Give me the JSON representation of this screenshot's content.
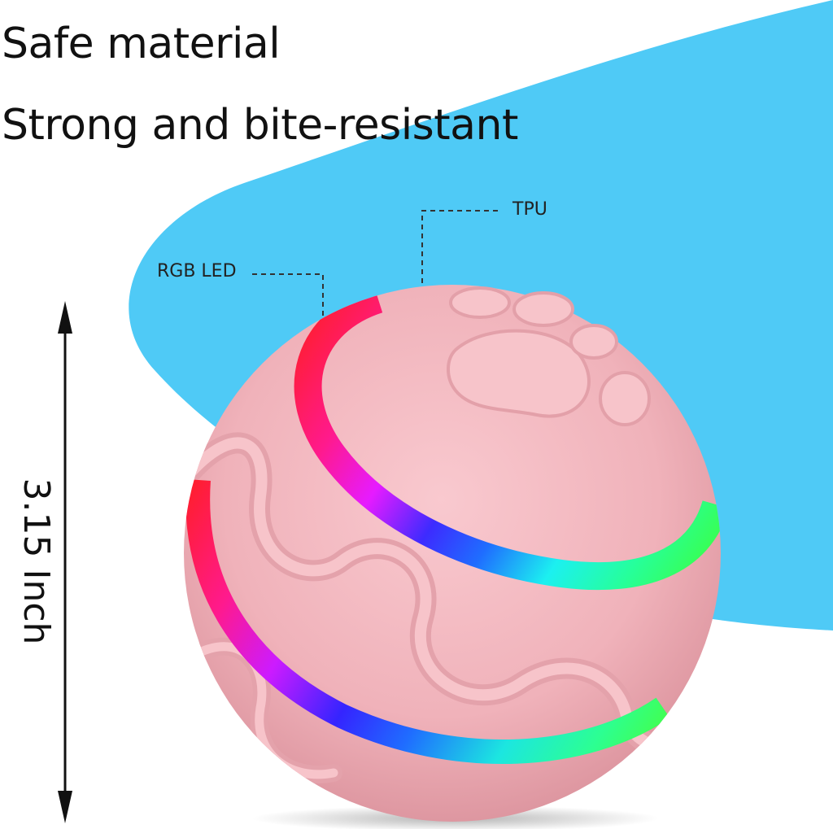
{
  "headline": {
    "line1": "Safe material",
    "line2": "Strong and bite-resistant"
  },
  "callouts": {
    "tpu": "TPU",
    "led": "RGB LED"
  },
  "dimension": {
    "label": "3.15 Inch"
  },
  "colors": {
    "background": "#ffffff",
    "blue_shape": "#4fcaf6",
    "ball_pink": "#f0b3bb",
    "text": "#111111"
  },
  "icons": {
    "arrow": "double-headed-vertical-arrow-icon",
    "paw": "paw-print-icon"
  }
}
